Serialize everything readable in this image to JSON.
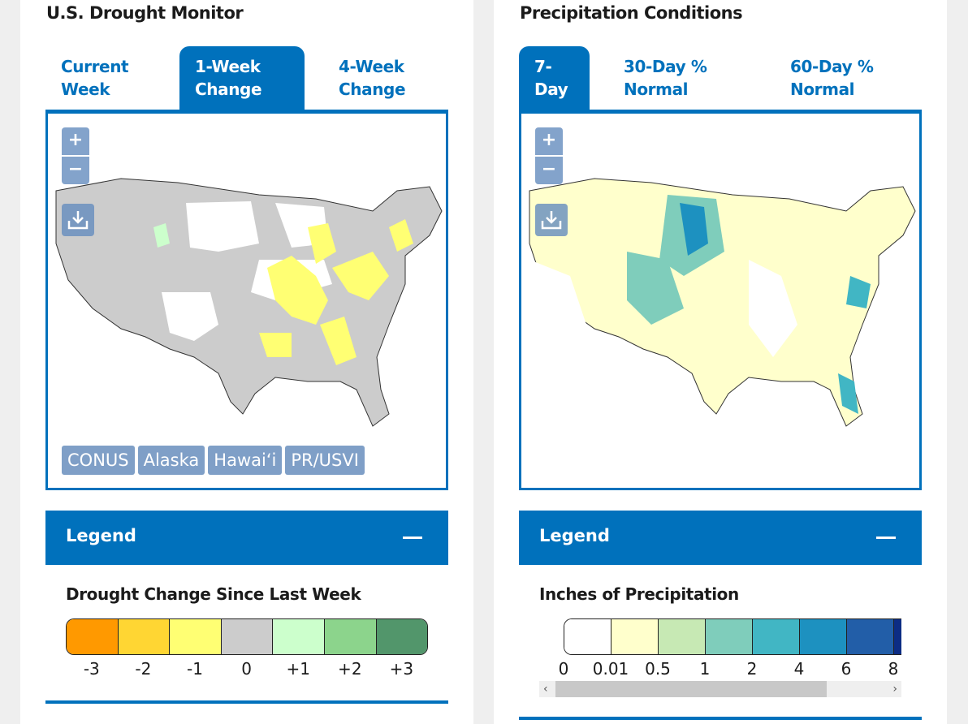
{
  "left": {
    "title": "U.S. Drought Monitor",
    "tabs": [
      {
        "label": "Current Week",
        "active": false
      },
      {
        "label": "1-Week Change",
        "active": true
      },
      {
        "label": "4-Week Change",
        "active": false
      }
    ],
    "map": {
      "zoom_in": "+",
      "zoom_out": "−",
      "download_icon": "download-icon",
      "regions": [
        "CONUS",
        "Alaska",
        "Hawai‘i",
        "PR/USVI"
      ]
    },
    "legend": {
      "header": "Legend",
      "collapse_icon": "minus-icon",
      "title": "Drought Change Since Last Week",
      "classes": [
        {
          "label": "-3",
          "color": "#ff9900"
        },
        {
          "label": "-2",
          "color": "#ffd633"
        },
        {
          "label": "-1",
          "color": "#ffff73"
        },
        {
          "label": "0",
          "color": "#cccccc"
        },
        {
          "label": "+1",
          "color": "#ccffcc"
        },
        {
          "label": "+2",
          "color": "#8cd48c"
        },
        {
          "label": "+3",
          "color": "#52966b"
        }
      ]
    }
  },
  "right": {
    "title": "Precipitation Conditions",
    "tabs": [
      {
        "label": "7-Day",
        "active": true
      },
      {
        "label": "30-Day % Normal",
        "active": false
      },
      {
        "label": "60-Day % Normal",
        "active": false
      }
    ],
    "map": {
      "zoom_in": "+",
      "zoom_out": "−",
      "download_icon": "download-icon"
    },
    "legend": {
      "header": "Legend",
      "collapse_icon": "minus-icon",
      "title": "Inches of Precipitation",
      "classes": [
        {
          "label": "0",
          "color": "#ffffff"
        },
        {
          "label": "0.01",
          "color": "#ffffcc"
        },
        {
          "label": "0.5",
          "color": "#c7e9b4"
        },
        {
          "label": "1",
          "color": "#7fcdbb"
        },
        {
          "label": "2",
          "color": "#41b6c4"
        },
        {
          "label": "4",
          "color": "#1d91c0"
        },
        {
          "label": "6",
          "color": "#225ea8"
        },
        {
          "label": "8",
          "color": "#0c2c84"
        }
      ],
      "scroll_left": "‹",
      "scroll_right": "›"
    }
  },
  "accent_color": "#0071bc"
}
